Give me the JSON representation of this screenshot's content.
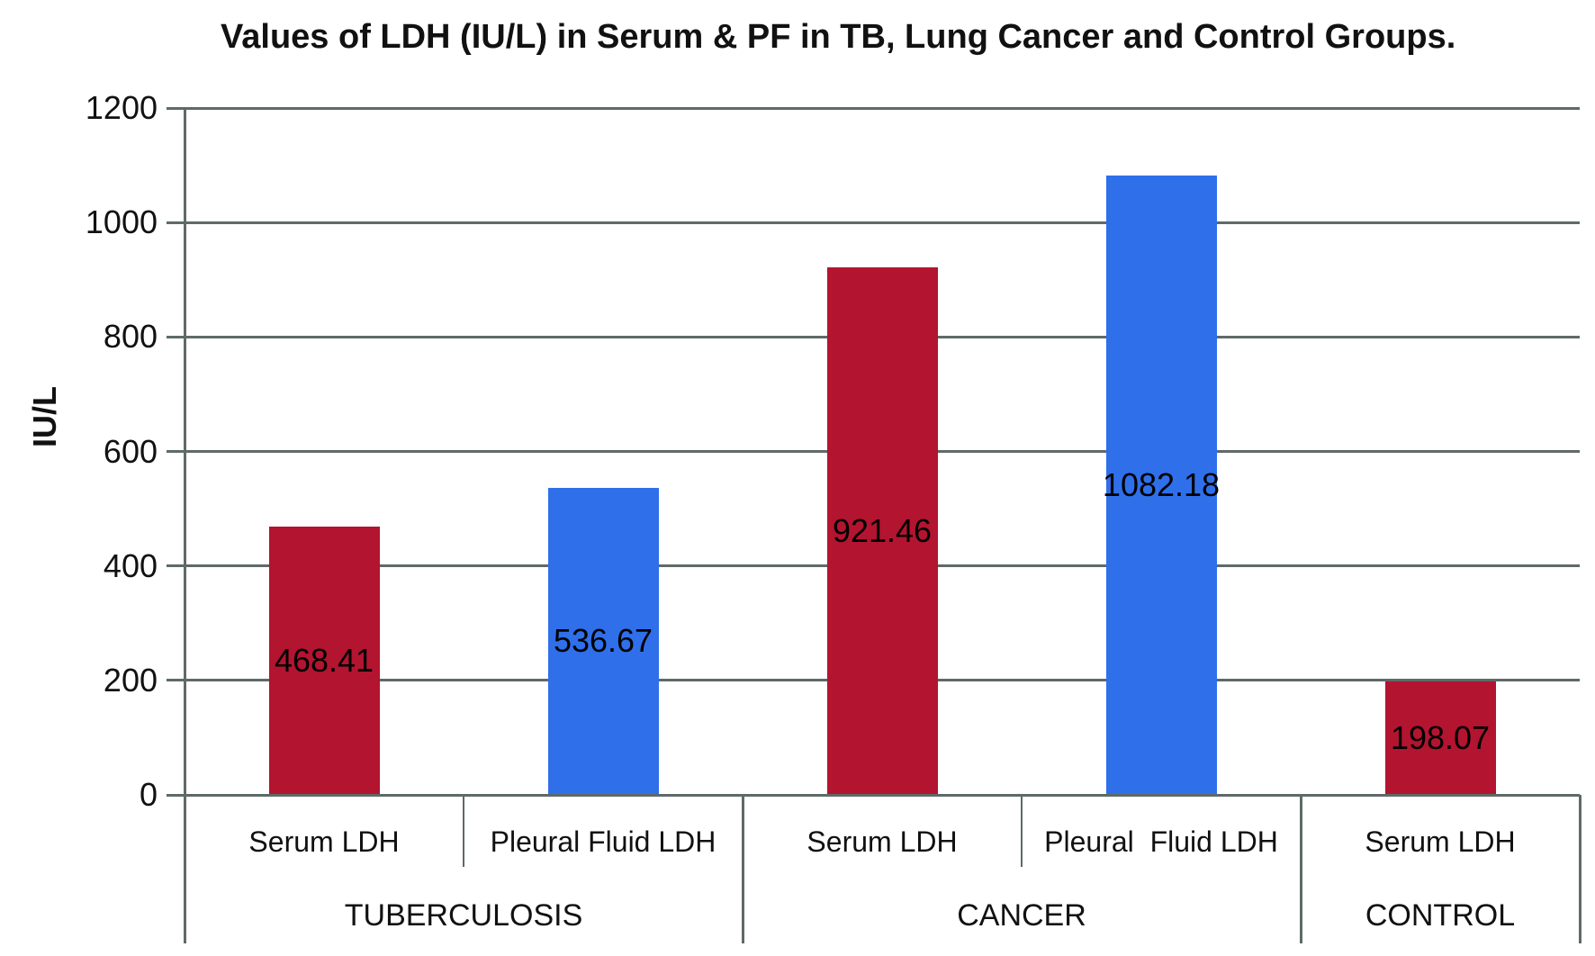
{
  "chart_data": {
    "type": "bar",
    "title": "Values of LDH (IU/L) in Serum & PF in TB, Lung Cancer and Control Groups.",
    "xlabel": "",
    "ylabel": "IU/L",
    "ylim": [
      0,
      1200
    ],
    "yticks": [
      0,
      200,
      400,
      600,
      800,
      1000,
      1200
    ],
    "grid": true,
    "legend": "none",
    "axis_color": "#5e6a68",
    "bar_colors": {
      "serum": "#b3142f",
      "pleural_fluid": "#2f6fea"
    },
    "categories": [
      "Serum LDH",
      "Pleural Fluid LDH",
      "Serum LDH",
      "Pleural  Fluid LDH",
      "Serum LDH"
    ],
    "data_labels": [
      "468.41",
      "536.67",
      "921.46",
      "1082.18",
      "198.07"
    ],
    "groups": [
      {
        "label": "TUBERCULOSIS",
        "bars": [
          {
            "category": "Serum LDH",
            "value": 468.41,
            "label": "468.41",
            "series": "serum"
          },
          {
            "category": "Pleural Fluid LDH",
            "value": 536.67,
            "label": "536.67",
            "series": "pleural_fluid"
          }
        ]
      },
      {
        "label": "CANCER",
        "bars": [
          {
            "category": "Serum LDH",
            "value": 921.46,
            "label": "921.46",
            "series": "serum"
          },
          {
            "category": "Pleural  Fluid LDH",
            "value": 1082.18,
            "label": "1082.18",
            "series": "pleural_fluid"
          }
        ]
      },
      {
        "label": "CONTROL",
        "bars": [
          {
            "category": "Serum LDH",
            "value": 198.07,
            "label": "198.07",
            "series": "serum"
          }
        ]
      }
    ]
  }
}
